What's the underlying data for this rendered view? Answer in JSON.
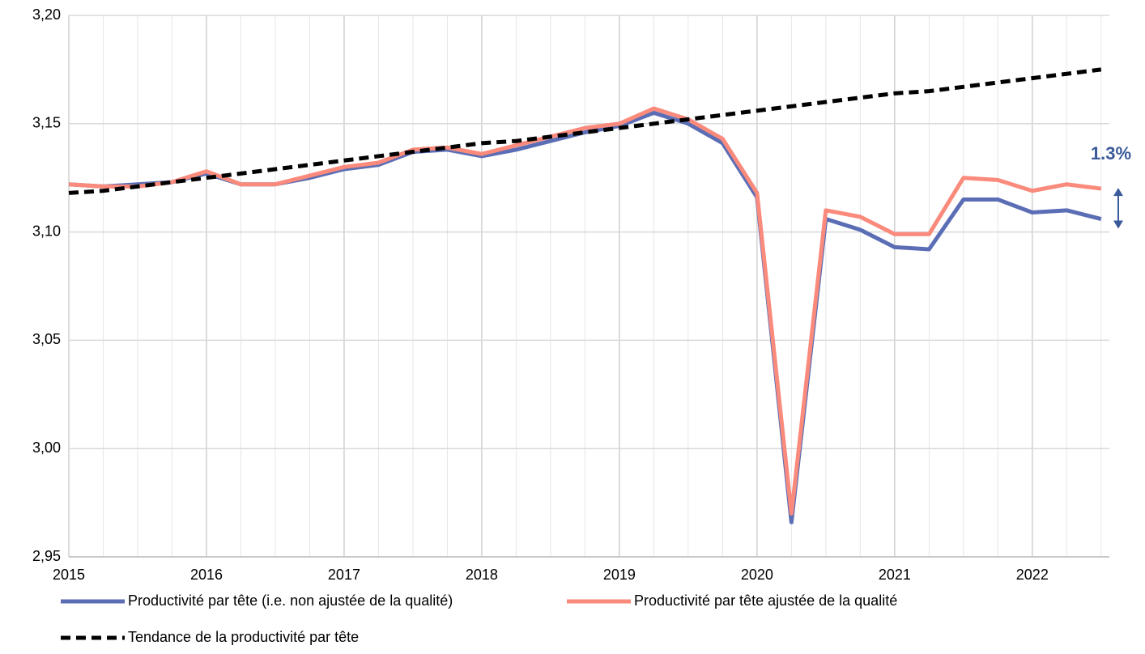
{
  "chart_data": {
    "type": "line",
    "x": [
      2015,
      2015.25,
      2015.5,
      2015.75,
      2016,
      2016.25,
      2016.5,
      2016.75,
      2017,
      2017.25,
      2017.5,
      2017.75,
      2018,
      2018.25,
      2018.5,
      2018.75,
      2019,
      2019.25,
      2019.5,
      2019.75,
      2020,
      2020.25,
      2020.5,
      2020.75,
      2021,
      2021.25,
      2021.5,
      2021.75,
      2022,
      2022.25,
      2022.5
    ],
    "series": [
      {
        "name": "Productivité par tête (i.e. non ajustée de la qualité)",
        "color": "#5b6eb5",
        "dash": false,
        "values": [
          3.122,
          3.121,
          3.122,
          3.123,
          3.127,
          3.122,
          3.122,
          3.125,
          3.129,
          3.131,
          3.137,
          3.138,
          3.135,
          3.138,
          3.142,
          3.146,
          3.149,
          3.155,
          3.15,
          3.141,
          3.116,
          2.966,
          3.106,
          3.101,
          3.093,
          3.092,
          3.115,
          3.115,
          3.109,
          3.11,
          3.106
        ]
      },
      {
        "name": "Productivité par tête ajustée de la qualité",
        "color": "#fa8a7c",
        "dash": false,
        "values": [
          3.122,
          3.121,
          3.121,
          3.123,
          3.128,
          3.122,
          3.122,
          3.126,
          3.13,
          3.132,
          3.138,
          3.139,
          3.136,
          3.14,
          3.144,
          3.148,
          3.15,
          3.157,
          3.152,
          3.143,
          3.118,
          2.97,
          3.11,
          3.107,
          3.099,
          3.099,
          3.125,
          3.124,
          3.119,
          3.122,
          3.12
        ]
      },
      {
        "name": "Tendance de la productivité par tête",
        "color": "#000000",
        "dash": true,
        "values": [
          3.118,
          3.119,
          3.121,
          3.123,
          3.125,
          3.127,
          3.129,
          3.131,
          3.133,
          3.135,
          3.137,
          3.139,
          3.141,
          3.142,
          3.144,
          3.146,
          3.148,
          3.15,
          3.152,
          3.154,
          3.156,
          3.158,
          3.16,
          3.162,
          3.164,
          3.165,
          3.167,
          3.169,
          3.171,
          3.173,
          3.175
        ]
      }
    ],
    "annotation": "1.3%",
    "annotation_color": "#3a5a9a",
    "xlim": [
      2015,
      2022.56
    ],
    "xticks": [
      2015,
      2016,
      2017,
      2018,
      2019,
      2020,
      2021,
      2022
    ],
    "xminorticks": [
      2015.25,
      2015.5,
      2015.75,
      2016.25,
      2016.5,
      2016.75,
      2017.25,
      2017.5,
      2017.75,
      2018.25,
      2018.5,
      2018.75,
      2019.25,
      2019.5,
      2019.75,
      2020.25,
      2020.5,
      2020.75,
      2021.25,
      2021.5,
      2021.75,
      2022.25,
      2022.5
    ],
    "ylim": [
      2.95,
      3.2
    ],
    "yticks": [
      {
        "value": 2.95,
        "label": "2,95"
      },
      {
        "value": 3.0,
        "label": "3,00"
      },
      {
        "value": 3.05,
        "label": "3,05"
      },
      {
        "value": 3.1,
        "label": "3,10"
      },
      {
        "value": 3.15,
        "label": "3,15"
      },
      {
        "value": 3.2,
        "label": "3,20"
      }
    ],
    "grid": true
  }
}
